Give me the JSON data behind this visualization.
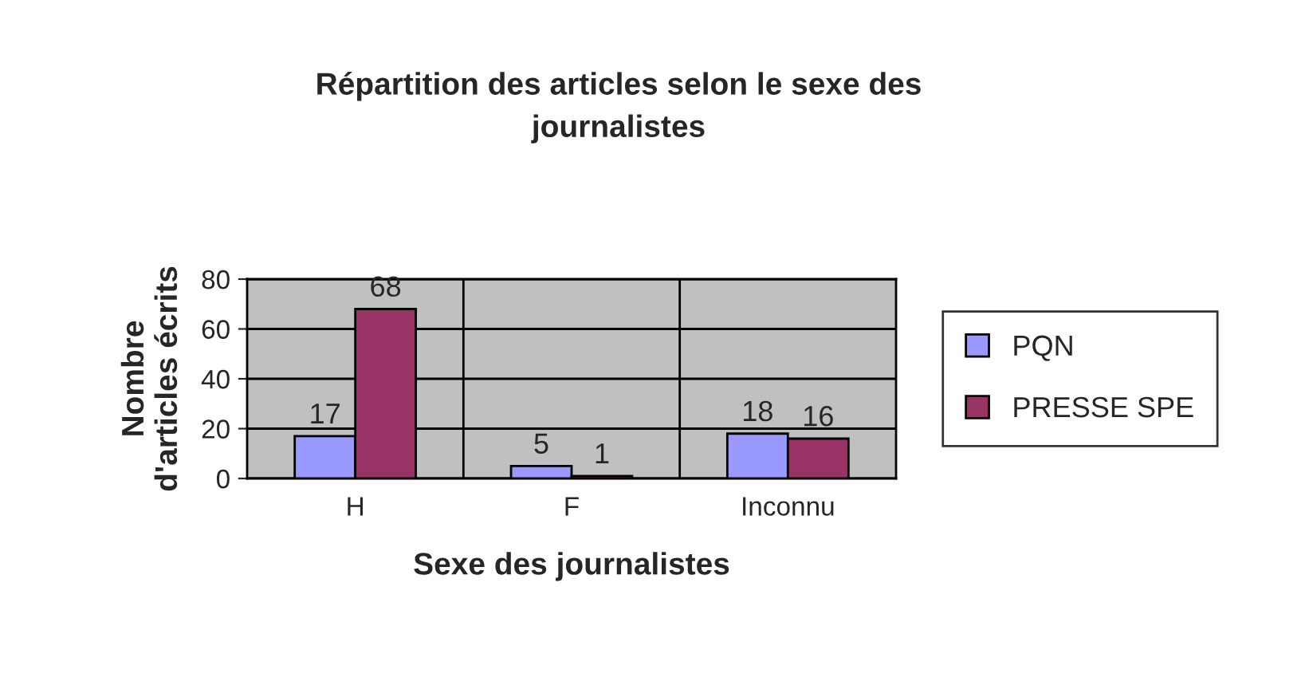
{
  "chart_data": {
    "type": "bar",
    "title": "Répartition des articles selon le sexe des\njournalistes",
    "xlabel": "Sexe des journalistes",
    "ylabel": "Nombre\nd'articles écrits",
    "categories": [
      "H",
      "F",
      "Inconnu"
    ],
    "series": [
      {
        "name": "PQN",
        "color": "#9999ff",
        "values": [
          17,
          5,
          18
        ]
      },
      {
        "name": "PRESSE SPE",
        "color": "#993366",
        "values": [
          68,
          1,
          16
        ]
      }
    ],
    "ylim": [
      0,
      80
    ],
    "yticks": [
      0,
      20,
      40,
      60,
      80
    ],
    "grid": true,
    "legend": "right",
    "data_labels": true
  }
}
